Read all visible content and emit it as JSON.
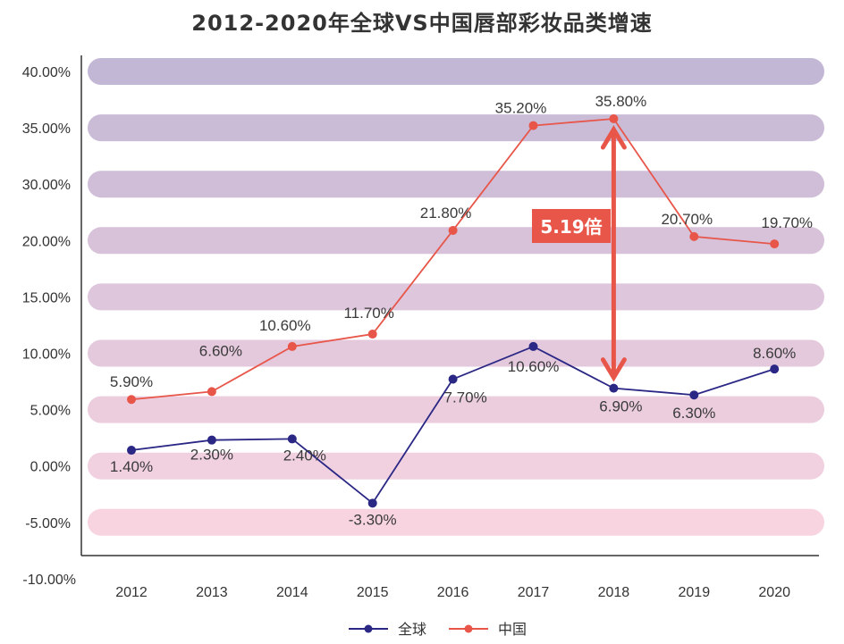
{
  "chart_data": {
    "type": "line",
    "title": "2012-2020年全球VS中国唇部彩妆品类增速",
    "xlabel": "",
    "ylabel": "",
    "categories": [
      "2012",
      "2013",
      "2014",
      "2015",
      "2016",
      "2017",
      "2018",
      "2019",
      "2020"
    ],
    "y_ticks": [
      40,
      35,
      30,
      20,
      15,
      10,
      5,
      0,
      -5,
      -10
    ],
    "y_tick_labels": [
      "40.00%",
      "35.00%",
      "30.00%",
      "20.00%",
      "15.00%",
      "10.00%",
      "5.00%",
      "0.00%",
      "-5.00%",
      "-10.00%"
    ],
    "series": [
      {
        "name": "全球",
        "color": "#2a2785",
        "values": [
          1.4,
          2.3,
          2.4,
          -3.3,
          7.7,
          10.6,
          6.9,
          6.3,
          8.6
        ],
        "labels": [
          "1.40%",
          "2.30%",
          "2.40%",
          "-3.30%",
          "7.70%",
          "10.60%",
          "6.90%",
          "6.30%",
          "8.60%"
        ]
      },
      {
        "name": "中国",
        "color": "#e8564a",
        "values": [
          5.9,
          6.6,
          10.6,
          11.7,
          21.8,
          35.2,
          35.8,
          20.7,
          19.7
        ],
        "labels": [
          "5.90%",
          "6.60%",
          "10.60%",
          "11.70%",
          "21.80%",
          "35.20%",
          "35.80%",
          "20.70%",
          "19.70%"
        ]
      }
    ],
    "annotation": {
      "text": "5.19倍",
      "year": "2018",
      "color": "#e8564a"
    },
    "legend_position": "bottom-center",
    "grid": "banded"
  }
}
